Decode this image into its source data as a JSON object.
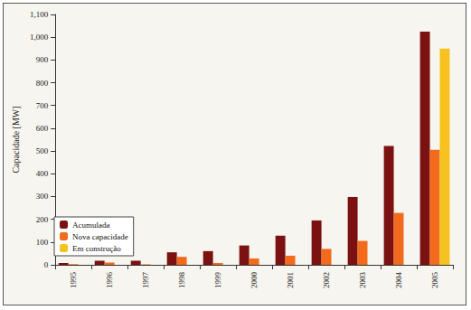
{
  "chart_data": {
    "type": "bar",
    "y_label": "Capacidade [MW]",
    "categories": [
      "1995",
      "1996",
      "1997",
      "1998",
      "1999",
      "2000",
      "2001",
      "2002",
      "2003",
      "2004",
      "2005"
    ],
    "series": [
      {
        "name": "Acumulada",
        "color": "#7b1111",
        "values": [
          8,
          18,
          18,
          55,
          60,
          85,
          128,
          195,
          298,
          522,
          1025
        ]
      },
      {
        "name": "Nova capacidade",
        "color": "#f26a1b",
        "values": [
          3,
          10,
          2,
          35,
          8,
          28,
          40,
          70,
          105,
          228,
          505
        ]
      },
      {
        "name": "Em construção",
        "color": "#f7c21f",
        "values": [
          null,
          null,
          null,
          null,
          null,
          null,
          null,
          null,
          null,
          null,
          950
        ]
      }
    ],
    "ylim": [
      0,
      1100
    ],
    "yticks": [
      0,
      100,
      200,
      300,
      400,
      500,
      600,
      700,
      800,
      900,
      1000,
      1100
    ],
    "grid": false,
    "legend": "lower left"
  }
}
